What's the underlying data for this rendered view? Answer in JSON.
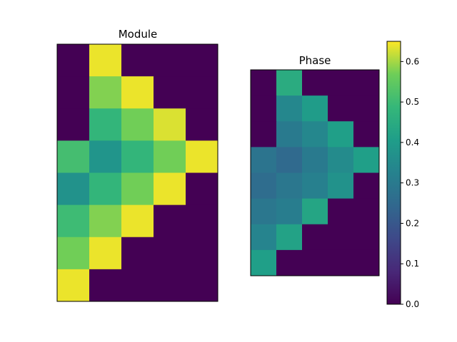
{
  "chart_data": [
    {
      "type": "heatmap",
      "title": "Module",
      "axes_visible": false,
      "rows": 8,
      "cols": 5,
      "colormap": "viridis",
      "clim": [
        0,
        0.65
      ],
      "values": [
        [
          0.0,
          0.64,
          0.0,
          0.0,
          0.0
        ],
        [
          0.0,
          0.58,
          0.64,
          0.0,
          0.0
        ],
        [
          0.0,
          0.48,
          0.57,
          0.63,
          0.0
        ],
        [
          0.51,
          0.38,
          0.48,
          0.57,
          0.64
        ],
        [
          0.37,
          0.48,
          0.57,
          0.64,
          0.0
        ],
        [
          0.5,
          0.58,
          0.64,
          0.0,
          0.0
        ],
        [
          0.57,
          0.64,
          0.0,
          0.0,
          0.0
        ],
        [
          0.64,
          0.0,
          0.0,
          0.0,
          0.0
        ]
      ]
    },
    {
      "type": "heatmap",
      "title": "Phase",
      "axes_visible": false,
      "rows": 8,
      "cols": 5,
      "colormap": "viridis",
      "clim": [
        0,
        0.65
      ],
      "values": [
        [
          0.0,
          0.45,
          0.0,
          0.0,
          0.0
        ],
        [
          0.0,
          0.34,
          0.4,
          0.0,
          0.0
        ],
        [
          0.0,
          0.3,
          0.34,
          0.41,
          0.0
        ],
        [
          0.28,
          0.25,
          0.3,
          0.35,
          0.41
        ],
        [
          0.26,
          0.29,
          0.32,
          0.37,
          0.0
        ],
        [
          0.29,
          0.31,
          0.43,
          0.0,
          0.0
        ],
        [
          0.33,
          0.42,
          0.0,
          0.0,
          0.0
        ],
        [
          0.41,
          0.0,
          0.0,
          0.0,
          0.0
        ]
      ]
    }
  ],
  "colorbar": {
    "range": [
      0,
      0.65
    ],
    "ticks": [
      "0.0",
      "0.1",
      "0.2",
      "0.3",
      "0.4",
      "0.5",
      "0.6"
    ],
    "tick_values": [
      0.0,
      0.1,
      0.2,
      0.3,
      0.4,
      0.5,
      0.6
    ]
  }
}
